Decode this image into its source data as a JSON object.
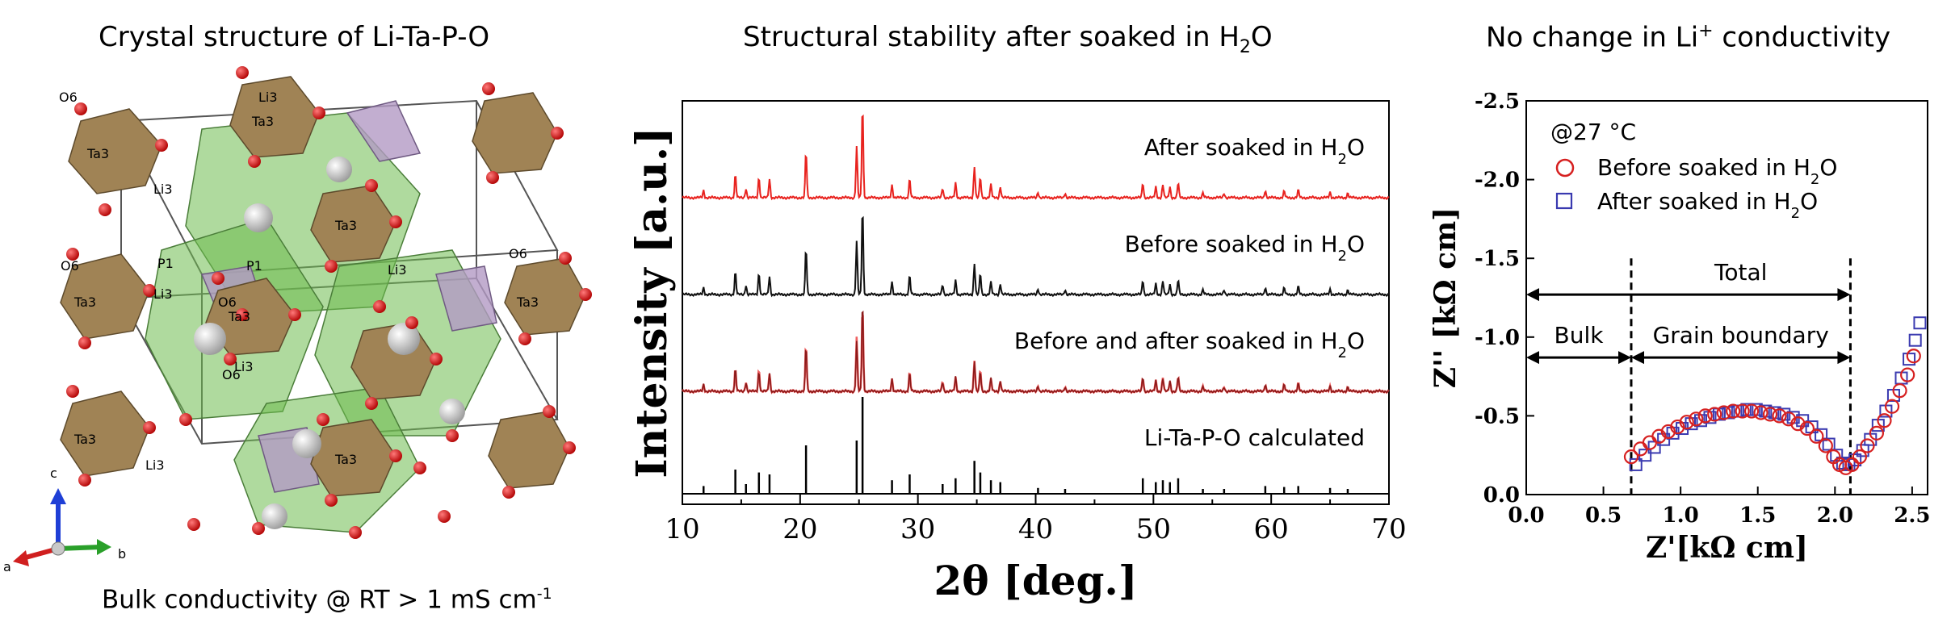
{
  "panels": {
    "left": {
      "title": "Crystal structure of Li-Ta-P-O",
      "caption": "Bulk conductivity @ RT > 1 mS cm",
      "caption_sup": "-1",
      "axes": {
        "a": "a",
        "b": "b",
        "c": "c"
      },
      "atom_labels": [
        "O6",
        "Ta3",
        "Ta3",
        "Li3",
        "Li3",
        "P1",
        "Li3",
        "O6",
        "Ta3",
        "Ta3",
        "P1",
        "Li3",
        "Ta3",
        "Li3",
        "O6",
        "Ta3",
        "Li3",
        "O6",
        "Ta3",
        "O6",
        "Ta3"
      ]
    },
    "middle": {
      "title_pre": "Structural stability after soaked in H",
      "title_sub": "2",
      "title_post": "O"
    },
    "right": {
      "title_pre": "No change in Li",
      "title_sup": "+",
      "title_post": " conductivity"
    }
  },
  "chart_data": [
    {
      "type": "line",
      "xlabel": "2θ [deg.]",
      "ylabel": "Intensity [a.u.]",
      "xlim": [
        10,
        70
      ],
      "xticks": [
        "10",
        "20",
        "30",
        "40",
        "50",
        "60",
        "70"
      ],
      "colors": {
        "after": "#e8231f",
        "before": "#111111",
        "overlay_before": "#8b1a1a",
        "overlay_after": "#ef6060",
        "calc": "#000000"
      },
      "peaks": [
        {
          "x": 11.8,
          "h": 0.08
        },
        {
          "x": 14.5,
          "h": 0.25
        },
        {
          "x": 15.4,
          "h": 0.1
        },
        {
          "x": 16.5,
          "h": 0.22
        },
        {
          "x": 17.4,
          "h": 0.2
        },
        {
          "x": 20.5,
          "h": 0.5
        },
        {
          "x": 24.8,
          "h": 0.55
        },
        {
          "x": 25.3,
          "h": 1.0
        },
        {
          "x": 27.8,
          "h": 0.14
        },
        {
          "x": 29.3,
          "h": 0.2
        },
        {
          "x": 32.1,
          "h": 0.1
        },
        {
          "x": 33.2,
          "h": 0.16
        },
        {
          "x": 34.8,
          "h": 0.34
        },
        {
          "x": 35.3,
          "h": 0.22
        },
        {
          "x": 36.2,
          "h": 0.14
        },
        {
          "x": 37.0,
          "h": 0.12
        },
        {
          "x": 40.2,
          "h": 0.06
        },
        {
          "x": 42.5,
          "h": 0.05
        },
        {
          "x": 49.1,
          "h": 0.16
        },
        {
          "x": 50.2,
          "h": 0.12
        },
        {
          "x": 50.8,
          "h": 0.14
        },
        {
          "x": 51.4,
          "h": 0.12
        },
        {
          "x": 52.1,
          "h": 0.16
        },
        {
          "x": 54.2,
          "h": 0.05
        },
        {
          "x": 56.0,
          "h": 0.05
        },
        {
          "x": 59.5,
          "h": 0.08
        },
        {
          "x": 61.1,
          "h": 0.07
        },
        {
          "x": 62.3,
          "h": 0.08
        },
        {
          "x": 65.0,
          "h": 0.06
        },
        {
          "x": 66.5,
          "h": 0.05
        }
      ],
      "series": [
        {
          "label_pre": "After soaked in H",
          "label_sub": "2",
          "label_post": "O"
        },
        {
          "label_pre": "Before soaked in H",
          "label_sub": "2",
          "label_post": "O"
        },
        {
          "label_pre": "Before and after soaked in H",
          "label_sub": "2",
          "label_post": "O"
        },
        {
          "label_pre": "Li-Ta-P-O calculated",
          "label_sub": "",
          "label_post": ""
        }
      ]
    },
    {
      "type": "scatter",
      "xlabel": "Z'[kΩ cm]",
      "ylabel": "Z'' [kΩ cm]",
      "xlim": [
        0,
        2.6
      ],
      "ylim": [
        0,
        -2.5
      ],
      "xticks": [
        "0.0",
        "0.5",
        "1.0",
        "1.5",
        "2.0",
        "2.5"
      ],
      "yticks": [
        "0.0",
        "-0.5",
        "-1.0",
        "-1.5",
        "-2.0",
        "-2.5"
      ],
      "temperature": "@27 °C",
      "legend": [
        {
          "label_pre": "Before soaked in H",
          "label_sub": "2",
          "label_post": "O",
          "marker": "circle",
          "color": "#d62020"
        },
        {
          "label_pre": "After soaked in H",
          "label_sub": "2",
          "label_post": "O",
          "marker": "square",
          "color": "#3a3ab0"
        }
      ],
      "annotations": {
        "total": "Total",
        "bulk": "Bulk",
        "grain": "Grain boundary"
      },
      "dividers_x": [
        0.68,
        2.1
      ],
      "series": [
        {
          "name": "Before soaked in H2O",
          "points": [
            [
              0.68,
              -0.24
            ],
            [
              0.74,
              -0.29
            ],
            [
              0.8,
              -0.33
            ],
            [
              0.86,
              -0.37
            ],
            [
              0.92,
              -0.4
            ],
            [
              0.98,
              -0.43
            ],
            [
              1.04,
              -0.46
            ],
            [
              1.1,
              -0.48
            ],
            [
              1.16,
              -0.5
            ],
            [
              1.22,
              -0.51
            ],
            [
              1.28,
              -0.52
            ],
            [
              1.34,
              -0.53
            ],
            [
              1.4,
              -0.53
            ],
            [
              1.46,
              -0.53
            ],
            [
              1.52,
              -0.52
            ],
            [
              1.58,
              -0.51
            ],
            [
              1.64,
              -0.5
            ],
            [
              1.7,
              -0.48
            ],
            [
              1.76,
              -0.45
            ],
            [
              1.82,
              -0.42
            ],
            [
              1.88,
              -0.37
            ],
            [
              1.94,
              -0.31
            ],
            [
              1.99,
              -0.24
            ],
            [
              2.03,
              -0.19
            ],
            [
              2.07,
              -0.17
            ],
            [
              2.11,
              -0.19
            ],
            [
              2.16,
              -0.24
            ],
            [
              2.21,
              -0.31
            ],
            [
              2.27,
              -0.39
            ],
            [
              2.32,
              -0.47
            ],
            [
              2.37,
              -0.56
            ],
            [
              2.42,
              -0.66
            ],
            [
              2.47,
              -0.76
            ],
            [
              2.51,
              -0.88
            ]
          ]
        },
        {
          "name": "After soaked in H2O",
          "points": [
            [
              0.71,
              -0.19
            ],
            [
              0.77,
              -0.25
            ],
            [
              0.83,
              -0.3
            ],
            [
              0.89,
              -0.35
            ],
            [
              0.95,
              -0.39
            ],
            [
              1.01,
              -0.42
            ],
            [
              1.07,
              -0.45
            ],
            [
              1.13,
              -0.47
            ],
            [
              1.19,
              -0.49
            ],
            [
              1.25,
              -0.51
            ],
            [
              1.31,
              -0.52
            ],
            [
              1.37,
              -0.53
            ],
            [
              1.43,
              -0.54
            ],
            [
              1.49,
              -0.54
            ],
            [
              1.55,
              -0.53
            ],
            [
              1.61,
              -0.52
            ],
            [
              1.67,
              -0.51
            ],
            [
              1.73,
              -0.49
            ],
            [
              1.79,
              -0.47
            ],
            [
              1.85,
              -0.43
            ],
            [
              1.91,
              -0.38
            ],
            [
              1.96,
              -0.32
            ],
            [
              2.01,
              -0.25
            ],
            [
              2.05,
              -0.2
            ],
            [
              2.09,
              -0.19
            ],
            [
              2.13,
              -0.22
            ],
            [
              2.18,
              -0.28
            ],
            [
              2.23,
              -0.35
            ],
            [
              2.28,
              -0.44
            ],
            [
              2.33,
              -0.53
            ],
            [
              2.38,
              -0.63
            ],
            [
              2.43,
              -0.74
            ],
            [
              2.48,
              -0.86
            ],
            [
              2.52,
              -0.98
            ],
            [
              2.55,
              -1.09
            ]
          ]
        }
      ]
    }
  ]
}
